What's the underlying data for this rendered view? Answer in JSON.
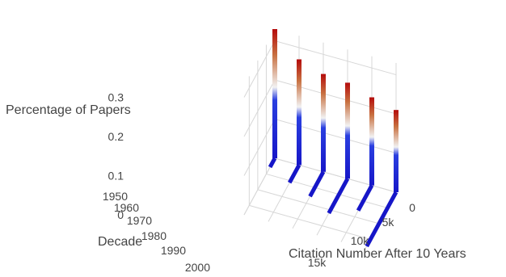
{
  "chart_data": {
    "type": "3d-line",
    "xlabel": "Citation Number After 10 Years",
    "ylabel": "Decade",
    "zlabel": "Percentage of Papers",
    "x_ticks": [
      "0",
      "5k",
      "10k",
      "15k"
    ],
    "y_ticks": [
      "1950",
      "1960",
      "1970",
      "1980",
      "1990",
      "2000"
    ],
    "z_ticks": [
      "0",
      "0.1",
      "0.2",
      "0.3"
    ],
    "xlim": [
      0,
      18000
    ],
    "ylim": [
      1950,
      2000
    ],
    "zlim": [
      0,
      0.33
    ],
    "grid": true,
    "colorscale": [
      "#1616c8",
      "#ffffff",
      "#b40b0b"
    ],
    "series": [
      {
        "decade": 1950,
        "x": [
          0,
          2800
        ],
        "z": [
          0.33,
          0.0
        ]
      },
      {
        "decade": 1960,
        "x": [
          0,
          5600
        ],
        "z": [
          0.27,
          0.0
        ]
      },
      {
        "decade": 1970,
        "x": [
          0,
          7800
        ],
        "z": [
          0.25,
          0.0
        ]
      },
      {
        "decade": 1980,
        "x": [
          0,
          11000
        ],
        "z": [
          0.245,
          0.0
        ]
      },
      {
        "decade": 1990,
        "x": [
          0,
          8000
        ],
        "z": [
          0.225,
          0.0
        ]
      },
      {
        "decade": 2000,
        "x": [
          0,
          17200
        ],
        "z": [
          0.21,
          0.0
        ]
      }
    ]
  }
}
